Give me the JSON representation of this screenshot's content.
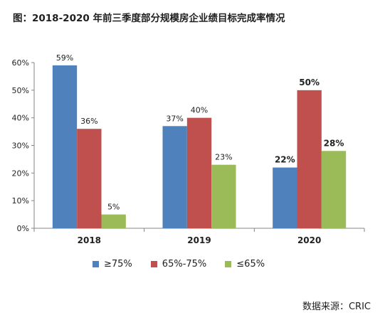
{
  "chart_data": {
    "type": "bar",
    "title": "图：2018-2020 年前三季度部分规模房企业绩目标完成率情况",
    "categories": [
      "2018",
      "2019",
      "2020"
    ],
    "series": [
      {
        "name": "≥75%",
        "values": [
          59,
          37,
          22
        ],
        "color": "#4F81BD"
      },
      {
        "name": "65%-75%",
        "values": [
          36,
          40,
          50
        ],
        "color": "#C0504D"
      },
      {
        "name": "≤65%",
        "values": [
          5,
          23,
          28
        ],
        "color": "#9BBB59"
      }
    ],
    "data_labels": [
      [
        "59%",
        "36%",
        "5%"
      ],
      [
        "37%",
        "40%",
        "23%"
      ],
      [
        "22%",
        "50%",
        "28%"
      ]
    ],
    "bold_labels_category": "2020",
    "y_ticks": [
      "0%",
      "10%",
      "20%",
      "30%",
      "40%",
      "50%",
      "60%"
    ],
    "ylim": [
      0,
      60
    ],
    "y_unit": "%",
    "xlabel": "",
    "ylabel": "",
    "grid": false,
    "legend_position": "bottom"
  },
  "source": "数据来源：CRIC"
}
